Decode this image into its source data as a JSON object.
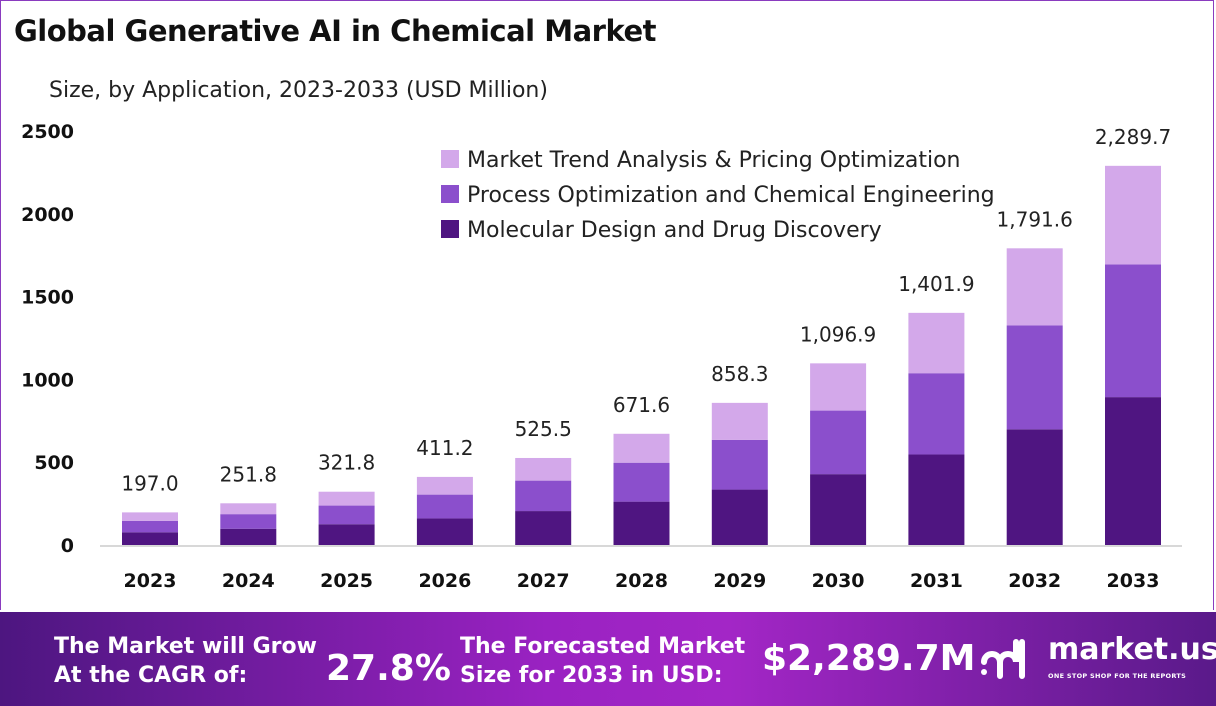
{
  "chart_data": {
    "type": "bar",
    "stacked": true,
    "title": "Global Generative AI in Chemical Market",
    "subtitle": "Size, by Application, 2023-2033 (USD Million)",
    "categories": [
      "2023",
      "2024",
      "2025",
      "2026",
      "2027",
      "2028",
      "2029",
      "2030",
      "2031",
      "2032",
      "2033"
    ],
    "totals": [
      "197.0",
      "251.8",
      "321.8",
      "411.2",
      "525.5",
      "671.6",
      "858.3",
      "1,096.9",
      "1,401.9",
      "1,791.6",
      "2,289.7"
    ],
    "total_values": [
      197.0,
      251.8,
      321.8,
      411.2,
      525.5,
      671.6,
      858.3,
      1096.9,
      1401.9,
      1791.6,
      2289.7
    ],
    "series": [
      {
        "name": "Molecular Design and Drug Discovery",
        "color": "#4f1581",
        "values": [
          77.0,
          98.2,
          125.5,
          160.4,
          204.9,
          261.9,
          334.7,
          427.8,
          546.7,
          698.7,
          893.0
        ]
      },
      {
        "name": "Process Optimization and Chemical Engineering",
        "color": "#8b4fcc",
        "values": [
          69.0,
          88.1,
          112.6,
          143.9,
          183.9,
          235.1,
          300.4,
          383.9,
          490.7,
          627.1,
          801.4
        ]
      },
      {
        "name": "Market Trend Analysis & Pricing Optimization",
        "color": "#d3a8ea",
        "values": [
          51.0,
          65.5,
          83.7,
          106.9,
          136.7,
          174.6,
          223.2,
          285.2,
          364.5,
          465.8,
          595.3
        ]
      }
    ],
    "yticks": [
      "0",
      "500",
      "1000",
      "1500",
      "2000",
      "2500"
    ],
    "ylim": [
      0,
      2500
    ],
    "grid": false,
    "legend": "top-right"
  },
  "footer": {
    "cagr_label_1": "The Market will Grow",
    "cagr_label_2": "At the CAGR of:",
    "cagr_value": "27.8%",
    "size_label_1": "The Forecasted Market",
    "size_label_2": "Size for 2033 in USD:",
    "size_value": "$2,289.7M",
    "brand": "market.us",
    "tagline": "ONE STOP SHOP FOR THE REPORTS"
  }
}
